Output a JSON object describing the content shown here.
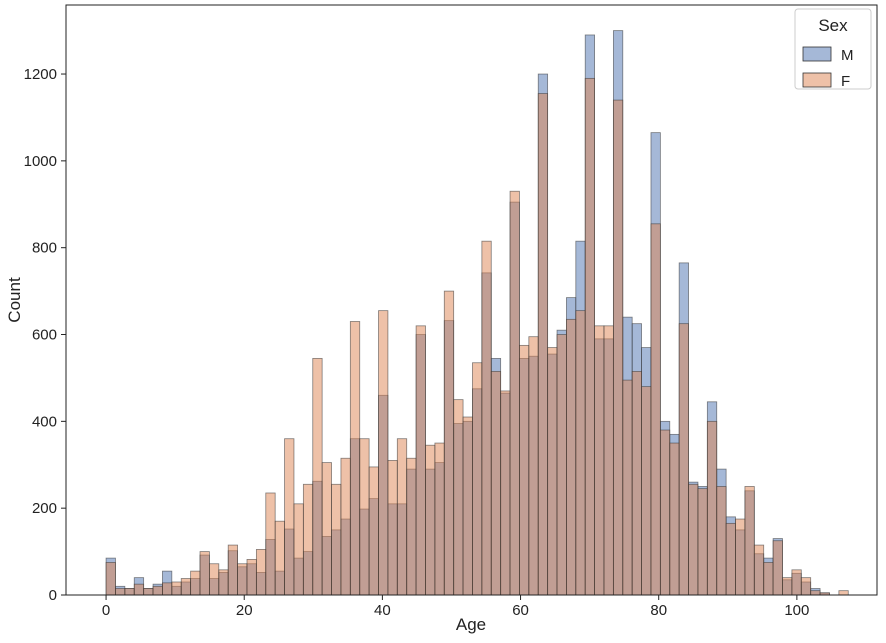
{
  "chart_data": {
    "type": "histogram",
    "x_label": "Age",
    "y_label": "Count",
    "legend_title": "Sex",
    "legend_position": "upper right",
    "bins": [
      0,
      1.36,
      2.72,
      4.08,
      5.44,
      6.8,
      8.16,
      9.52,
      10.88,
      12.24,
      13.6,
      14.96,
      16.32,
      17.68,
      19.04,
      20.4,
      21.76,
      23.12,
      24.48,
      25.84,
      27.2,
      28.56,
      29.92,
      31.28,
      32.64,
      34,
      35.36,
      36.72,
      38.08,
      39.44,
      40.8,
      42.16,
      43.52,
      44.88,
      46.24,
      47.6,
      48.96,
      50.32,
      51.68,
      53.04,
      54.4,
      55.76,
      57.12,
      58.48,
      59.84,
      61.2,
      62.56,
      63.92,
      65.28,
      66.64,
      68,
      69.36,
      70.72,
      72.08,
      73.44,
      74.8,
      76.16,
      77.52,
      78.88,
      80.24,
      81.6,
      82.96,
      84.32,
      85.68,
      87.04,
      88.4,
      89.76,
      91.12,
      92.48,
      93.84,
      95.2,
      96.56,
      97.92,
      99.28,
      100.64,
      102,
      103.36,
      104.72,
      106.08,
      107.44
    ],
    "series": [
      {
        "name": "M",
        "color": "#4c72b0",
        "values": [
          85,
          20,
          15,
          40,
          15,
          25,
          55,
          20,
          30,
          38,
          92,
          38,
          52,
          102,
          65,
          72,
          52,
          128,
          55,
          152,
          85,
          100,
          262,
          135,
          150,
          175,
          360,
          198,
          222,
          460,
          210,
          210,
          290,
          600,
          290,
          305,
          632,
          395,
          400,
          475,
          742,
          545,
          465,
          905,
          545,
          550,
          1200,
          555,
          610,
          685,
          815,
          1290,
          590,
          590,
          1300,
          640,
          625,
          570,
          1065,
          400,
          370,
          765,
          260,
          250,
          445,
          290,
          180,
          150,
          240,
          95,
          85,
          130,
          35,
          50,
          30,
          15,
          5,
          0,
          0
        ]
      },
      {
        "name": "F",
        "color": "#dd8452",
        "values": [
          75,
          15,
          15,
          25,
          15,
          20,
          28,
          30,
          38,
          55,
          100,
          72,
          58,
          115,
          72,
          82,
          105,
          235,
          170,
          360,
          210,
          255,
          545,
          305,
          255,
          315,
          630,
          360,
          295,
          655,
          310,
          360,
          315,
          620,
          345,
          350,
          700,
          450,
          410,
          535,
          815,
          515,
          470,
          930,
          575,
          595,
          1155,
          570,
          600,
          635,
          655,
          1190,
          620,
          620,
          1140,
          495,
          515,
          480,
          855,
          380,
          350,
          625,
          255,
          245,
          400,
          250,
          165,
          175,
          250,
          115,
          75,
          125,
          40,
          58,
          40,
          10,
          5,
          0,
          10
        ]
      }
    ],
    "xlim": [
      -5.8,
      111.6
    ],
    "ylim": [
      0,
      1359
    ],
    "xticks": [
      0,
      20,
      40,
      60,
      80,
      100
    ],
    "yticks": [
      0,
      200,
      400,
      600,
      800,
      1000,
      1200
    ]
  }
}
